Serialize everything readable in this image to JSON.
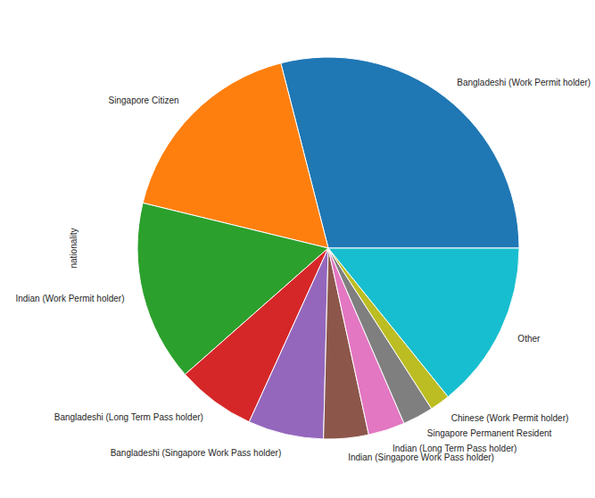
{
  "chart_data": {
    "type": "pie",
    "ylabel": "nationality",
    "categories": [
      "Bangladeshi (Work Permit holder)",
      "Singapore Citizen",
      "Indian (Work Permit holder)",
      "Bangladeshi (Long Term Pass holder)",
      "Bangladeshi (Singapore Work Pass holder)",
      "Indian (Singapore Work Pass holder)",
      "Indian (Long Term Pass holder)",
      "Singapore Permanent Resident",
      "Chinese (Work Permit holder)",
      "Other"
    ],
    "values": [
      29,
      17.2,
      15.3,
      6.7,
      6.4,
      3.8,
      3.1,
      2.6,
      1.7,
      14.2
    ],
    "colors": [
      "#1f77b4",
      "#ff7f0e",
      "#2ca02c",
      "#d62728",
      "#9467bd",
      "#8c564b",
      "#e377c2",
      "#7f7f7f",
      "#bcbd22",
      "#17becf"
    ]
  }
}
